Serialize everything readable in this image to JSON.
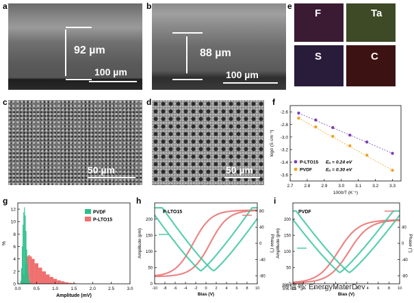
{
  "panels": {
    "a": {
      "letter": "a",
      "thickness": "92 µm",
      "scale": "100 µm"
    },
    "b": {
      "letter": "b",
      "thickness": "88 µm",
      "scale": "100 µm"
    },
    "c": {
      "letter": "c",
      "scale": "50 µm"
    },
    "d": {
      "letter": "d",
      "scale": "50 µm"
    },
    "e": {
      "letter": "e",
      "elements": [
        "F",
        "Ta",
        "S",
        "C"
      ],
      "colors": [
        "#3a1b33",
        "#3d4a25",
        "#281c3a",
        "#3c1212"
      ]
    },
    "f": {
      "letter": "f"
    },
    "g": {
      "letter": "g"
    },
    "h": {
      "letter": "h"
    },
    "i": {
      "letter": "i"
    }
  },
  "chart_data": [
    {
      "panel": "f",
      "type": "scatter",
      "xlabel": "1000/T (K⁻¹)",
      "ylabel": "logσ (S cm⁻¹)",
      "xlim": [
        2.7,
        3.35
      ],
      "ylim": [
        -3.7,
        -2.5
      ],
      "xticks": [
        "2.7",
        "2.8",
        "2.9",
        "3.0",
        "3.1",
        "3.2",
        "3.3"
      ],
      "yticks": [
        "-2.6",
        "-2.8",
        "-3.0",
        "-3.2",
        "-3.4",
        "-3.6"
      ],
      "series": [
        {
          "name": "P-LTO15",
          "ea_label": "Eₐ = 0.24 eV",
          "color": "#7b3fb0",
          "x": [
            2.75,
            2.85,
            2.95,
            3.05,
            3.15,
            3.3
          ],
          "y": [
            -2.62,
            -2.73,
            -2.85,
            -2.97,
            -3.08,
            -3.26
          ]
        },
        {
          "name": "PVDF",
          "ea_label": "Eₐ = 0.30 eV",
          "color": "#f0a020",
          "x": [
            2.75,
            2.85,
            2.95,
            3.05,
            3.15,
            3.3
          ],
          "y": [
            -2.7,
            -2.84,
            -2.99,
            -3.14,
            -3.29,
            -3.53
          ]
        }
      ],
      "legend": "bottom-left"
    },
    {
      "panel": "g",
      "type": "bar",
      "xlabel": "Amplitude (mV)",
      "ylabel": "%",
      "xlim": [
        0,
        3.0
      ],
      "ylim": [
        0,
        13
      ],
      "xticks": [
        "0.0",
        "0.5",
        "1.0",
        "1.5",
        "2.0",
        "2.5",
        "3.0"
      ],
      "yticks": [
        "0",
        "2",
        "4",
        "6",
        "8",
        "10",
        "12"
      ],
      "series": [
        {
          "name": "PVDF",
          "color": "#2bbf8a",
          "x": [
            0.08,
            0.1,
            0.12,
            0.14,
            0.16,
            0.18,
            0.2,
            0.22,
            0.24,
            0.26,
            0.28,
            0.3,
            0.32,
            0.34
          ],
          "y": [
            0.5,
            2.5,
            6,
            9.5,
            11.5,
            12.3,
            11,
            8.5,
            5.5,
            3.2,
            1.6,
            0.7,
            0.3,
            0.1
          ]
        },
        {
          "name": "P-LTO15",
          "color": "#f07070",
          "x": [
            0.1,
            0.15,
            0.2,
            0.25,
            0.3,
            0.35,
            0.4,
            0.5,
            0.6,
            0.7,
            0.8,
            0.9,
            1.0,
            1.1,
            1.2,
            1.3,
            1.4,
            1.5,
            1.6
          ],
          "y": [
            0.3,
            1.5,
            3.2,
            4.4,
            4.6,
            4.4,
            4.0,
            3.3,
            2.6,
            2.0,
            1.5,
            1.1,
            0.8,
            0.55,
            0.4,
            0.25,
            0.15,
            0.1,
            0.05
          ]
        }
      ],
      "legend": "top-right"
    },
    {
      "panel": "h",
      "type": "line",
      "label": "P-LTO15",
      "xlabel": "Bias (V)",
      "ylabel": "Amplitude (pm)",
      "y2label": "Phase (°)",
      "xlim": [
        -10,
        10
      ],
      "ylim": [
        0,
        250
      ],
      "y2lim": [
        -100,
        100
      ],
      "xticks": [
        "-10",
        "-8",
        "-6",
        "-4",
        "-2",
        "0",
        "2",
        "4",
        "6",
        "8",
        "10"
      ],
      "yticks": [
        "0",
        "50",
        "100",
        "150",
        "200"
      ],
      "y2ticks": [
        "80",
        "40",
        "0",
        "-40",
        "-80"
      ]
    },
    {
      "panel": "i",
      "type": "line",
      "label": "PVDF",
      "xlabel": "Bias (V)",
      "ylabel": "Amplitude (pm)",
      "y2label": "Phase (°)",
      "xlim": [
        -10,
        10
      ],
      "ylim": [
        0,
        250
      ],
      "y2lim": [
        -100,
        100
      ],
      "xticks": [
        "-10",
        "-8",
        "-6",
        "-4",
        "-2",
        "0",
        "2",
        "4",
        "6",
        "8",
        "10"
      ],
      "yticks": [
        "0",
        "50",
        "100",
        "150",
        "200"
      ],
      "y2ticks": [
        "40",
        "0",
        "-40",
        "-80"
      ]
    }
  ],
  "watermark": "微信号: EnergyMaterDev"
}
